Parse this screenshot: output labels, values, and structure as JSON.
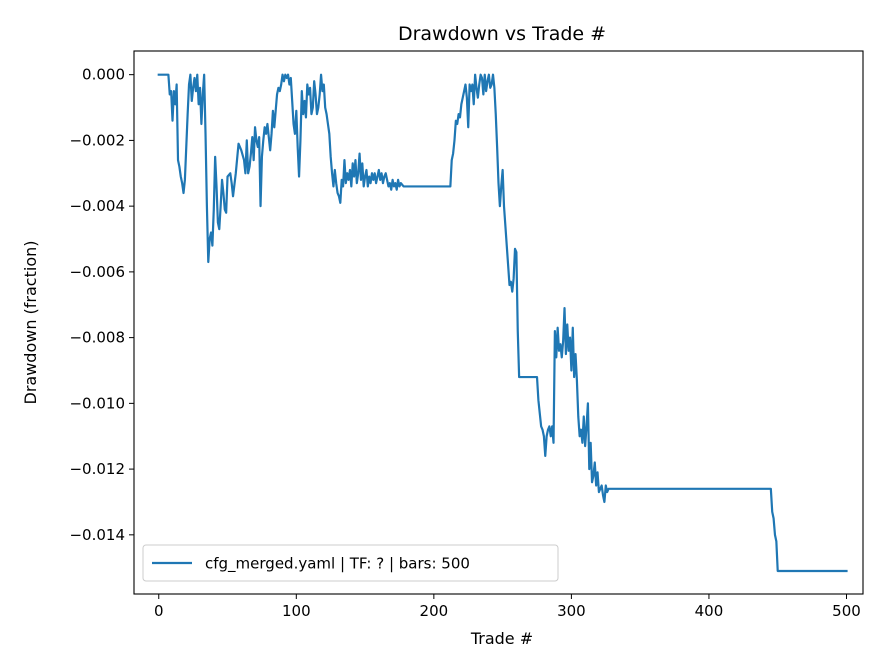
{
  "chart_data": {
    "type": "line",
    "title": "Drawdown vs Trade #",
    "xlabel": "Trade #",
    "ylabel": "Drawdown (fraction)",
    "xlim": [
      -18,
      512
    ],
    "ylim": [
      -0.0158,
      0.00072
    ],
    "x_ticks": [
      0,
      100,
      200,
      300,
      400,
      500
    ],
    "x_tick_labels": [
      "0",
      "100",
      "200",
      "300",
      "400",
      "500"
    ],
    "y_ticks": [
      0.0,
      -0.002,
      -0.004,
      -0.006,
      -0.008,
      -0.01,
      -0.012,
      -0.014
    ],
    "y_tick_labels": [
      "0.000",
      "−0.002",
      "−0.004",
      "−0.006",
      "−0.008",
      "−0.010",
      "−0.012",
      "−0.014"
    ],
    "grid": false,
    "legend_position": "lower-left",
    "line_color": "#1f77b4",
    "series": [
      {
        "name": "cfg_merged.yaml | TF: ? | bars: 500",
        "points": [
          [
            0,
            0.0
          ],
          [
            7,
            0.0
          ],
          [
            8,
            -0.0006
          ],
          [
            9,
            -0.0005
          ],
          [
            10,
            -0.0014
          ],
          [
            11,
            -0.0005
          ],
          [
            12,
            -0.0009
          ],
          [
            13,
            -0.0003
          ],
          [
            14,
            -0.0026
          ],
          [
            15,
            -0.0028
          ],
          [
            16,
            -0.0031
          ],
          [
            17,
            -0.0033
          ],
          [
            18,
            -0.0036
          ],
          [
            19,
            -0.0032
          ],
          [
            20,
            -0.0022
          ],
          [
            21,
            -0.0012
          ],
          [
            22,
            -0.0003
          ],
          [
            23,
            0.0
          ],
          [
            24,
            -0.0008
          ],
          [
            25,
            -0.0004
          ],
          [
            26,
            -0.0001
          ],
          [
            27,
            -0.0005
          ],
          [
            28,
            0.0
          ],
          [
            29,
            -0.0009
          ],
          [
            30,
            -0.0004
          ],
          [
            31,
            -0.0015
          ],
          [
            32,
            -0.0006
          ],
          [
            33,
            0.0
          ],
          [
            34,
            -0.0018
          ],
          [
            35,
            -0.004
          ],
          [
            36,
            -0.0057
          ],
          [
            37,
            -0.005
          ],
          [
            38,
            -0.0048
          ],
          [
            39,
            -0.0052
          ],
          [
            40,
            -0.0041
          ],
          [
            41,
            -0.0025
          ],
          [
            42,
            -0.0034
          ],
          [
            43,
            -0.0045
          ],
          [
            44,
            -0.0047
          ],
          [
            45,
            -0.004
          ],
          [
            46,
            -0.0032
          ],
          [
            47,
            -0.0036
          ],
          [
            48,
            -0.0041
          ],
          [
            49,
            -0.0042
          ],
          [
            50,
            -0.0031
          ],
          [
            52,
            -0.003
          ],
          [
            53,
            -0.0033
          ],
          [
            54,
            -0.0037
          ],
          [
            56,
            -0.003
          ],
          [
            58,
            -0.0021
          ],
          [
            60,
            -0.0023
          ],
          [
            62,
            -0.0026
          ],
          [
            63,
            -0.003
          ],
          [
            64,
            -0.002
          ],
          [
            65,
            -0.003
          ],
          [
            66,
            -0.0028
          ],
          [
            67,
            -0.0024
          ],
          [
            68,
            -0.0019
          ],
          [
            69,
            -0.0026
          ],
          [
            70,
            -0.0016
          ],
          [
            71,
            -0.002
          ],
          [
            72,
            -0.0022
          ],
          [
            73,
            -0.0019
          ],
          [
            74,
            -0.004
          ],
          [
            75,
            -0.0025
          ],
          [
            76,
            -0.002
          ],
          [
            77,
            -0.0016
          ],
          [
            78,
            -0.0018
          ],
          [
            79,
            -0.0015
          ],
          [
            80,
            -0.0019
          ],
          [
            81,
            -0.0023
          ],
          [
            82,
            -0.0018
          ],
          [
            83,
            -0.0011
          ],
          [
            84,
            -0.0016
          ],
          [
            85,
            -0.0011
          ],
          [
            86,
            -0.0006
          ],
          [
            87,
            -0.0004
          ],
          [
            88,
            -0.0005
          ],
          [
            89,
            -0.0003
          ],
          [
            90,
            0.0
          ],
          [
            91,
            -0.0002
          ],
          [
            92,
            0.0
          ],
          [
            93,
            -0.0001
          ],
          [
            94,
            0.0
          ],
          [
            95,
            -0.0003
          ],
          [
            96,
            -0.0001
          ],
          [
            97,
            -0.0008
          ],
          [
            98,
            -0.0015
          ],
          [
            99,
            -0.0018
          ],
          [
            100,
            -0.0011
          ],
          [
            101,
            -0.0022
          ],
          [
            102,
            -0.0031
          ],
          [
            103,
            -0.002
          ],
          [
            104,
            -0.0005
          ],
          [
            105,
            -0.0012
          ],
          [
            106,
            -0.0008
          ],
          [
            107,
            -0.0013
          ],
          [
            108,
            -0.0003
          ],
          [
            109,
            -0.0006
          ],
          [
            110,
            -0.0004
          ],
          [
            111,
            -0.0012
          ],
          [
            112,
            -0.001
          ],
          [
            113,
            -0.0002
          ],
          [
            114,
            -0.0006
          ],
          [
            115,
            -0.0012
          ],
          [
            116,
            -0.001
          ],
          [
            117,
            -0.0006
          ],
          [
            118,
            0.0
          ],
          [
            119,
            -0.0005
          ],
          [
            120,
            -0.0003
          ],
          [
            121,
            -0.001
          ],
          [
            122,
            -0.0012
          ],
          [
            123,
            -0.0015
          ],
          [
            124,
            -0.0018
          ],
          [
            125,
            -0.0025
          ],
          [
            126,
            -0.003
          ],
          [
            127,
            -0.0034
          ],
          [
            128,
            -0.0029
          ],
          [
            129,
            -0.0033
          ],
          [
            130,
            -0.0036
          ],
          [
            131,
            -0.0037
          ],
          [
            132,
            -0.0039
          ],
          [
            133,
            -0.0032
          ],
          [
            134,
            -0.0034
          ],
          [
            135,
            -0.0026
          ],
          [
            136,
            -0.0033
          ],
          [
            137,
            -0.003
          ],
          [
            138,
            -0.0032
          ],
          [
            139,
            -0.0029
          ],
          [
            140,
            -0.0034
          ],
          [
            141,
            -0.0027
          ],
          [
            142,
            -0.0031
          ],
          [
            143,
            -0.0026
          ],
          [
            144,
            -0.0033
          ],
          [
            145,
            -0.003
          ],
          [
            146,
            -0.0024
          ],
          [
            147,
            -0.0032
          ],
          [
            148,
            -0.0027
          ],
          [
            149,
            -0.0034
          ],
          [
            150,
            -0.0031
          ],
          [
            151,
            -0.0029
          ],
          [
            152,
            -0.0034
          ],
          [
            153,
            -0.0031
          ],
          [
            154,
            -0.0033
          ],
          [
            155,
            -0.003
          ],
          [
            156,
            -0.0032
          ],
          [
            157,
            -0.003
          ],
          [
            158,
            -0.0033
          ],
          [
            159,
            -0.0031
          ],
          [
            160,
            -0.0029
          ],
          [
            161,
            -0.0032
          ],
          [
            162,
            -0.003
          ],
          [
            163,
            -0.0033
          ],
          [
            164,
            -0.0031
          ],
          [
            165,
            -0.003
          ],
          [
            166,
            -0.0032
          ],
          [
            167,
            -0.0034
          ],
          [
            168,
            -0.0033
          ],
          [
            169,
            -0.0035
          ],
          [
            170,
            -0.0032
          ],
          [
            171,
            -0.0034
          ],
          [
            172,
            -0.0033
          ],
          [
            173,
            -0.0035
          ],
          [
            174,
            -0.0032
          ],
          [
            175,
            -0.0034
          ],
          [
            176,
            -0.0033
          ],
          [
            178,
            -0.0034
          ],
          [
            180,
            -0.0034
          ],
          [
            212,
            -0.0034
          ],
          [
            213,
            -0.0026
          ],
          [
            214,
            -0.0024
          ],
          [
            215,
            -0.002
          ],
          [
            216,
            -0.0014
          ],
          [
            217,
            -0.0015
          ],
          [
            218,
            -0.0012
          ],
          [
            219,
            -0.0013
          ],
          [
            220,
            -0.0009
          ],
          [
            221,
            -0.0007
          ],
          [
            222,
            -0.0005
          ],
          [
            223,
            -0.0003
          ],
          [
            224,
            -0.0007
          ],
          [
            225,
            -0.0016
          ],
          [
            226,
            -0.0003
          ],
          [
            227,
            -0.0005
          ],
          [
            228,
            -0.0003
          ],
          [
            229,
            -0.0009
          ],
          [
            230,
            0.0
          ],
          [
            231,
            -0.0004
          ],
          [
            232,
            -0.0007
          ],
          [
            233,
            -0.0003
          ],
          [
            234,
            0.0
          ],
          [
            235,
            -0.0001
          ],
          [
            236,
            -0.0006
          ],
          [
            237,
            0.0
          ],
          [
            238,
            -0.0005
          ],
          [
            239,
            -0.0002
          ],
          [
            240,
            0.0
          ],
          [
            241,
            -0.0004
          ],
          [
            242,
            -0.0003
          ],
          [
            243,
            0.0
          ],
          [
            244,
            -0.0004
          ],
          [
            245,
            -0.0012
          ],
          [
            246,
            -0.0022
          ],
          [
            247,
            -0.0033
          ],
          [
            248,
            -0.004
          ],
          [
            249,
            -0.0034
          ],
          [
            250,
            -0.0029
          ],
          [
            251,
            -0.004
          ],
          [
            252,
            -0.0046
          ],
          [
            253,
            -0.0052
          ],
          [
            254,
            -0.0058
          ],
          [
            255,
            -0.0064
          ],
          [
            256,
            -0.0063
          ],
          [
            257,
            -0.0066
          ],
          [
            258,
            -0.0062
          ],
          [
            259,
            -0.0053
          ],
          [
            260,
            -0.0054
          ],
          [
            261,
            -0.0078
          ],
          [
            262,
            -0.0092
          ],
          [
            275,
            -0.0092
          ],
          [
            276,
            -0.0099
          ],
          [
            277,
            -0.0103
          ],
          [
            278,
            -0.0107
          ],
          [
            279,
            -0.0108
          ],
          [
            280,
            -0.011
          ],
          [
            281,
            -0.0116
          ],
          [
            282,
            -0.011
          ],
          [
            283,
            -0.0108
          ],
          [
            284,
            -0.0107
          ],
          [
            285,
            -0.011
          ],
          [
            286,
            -0.0107
          ],
          [
            287,
            -0.0112
          ],
          [
            288,
            -0.0078
          ],
          [
            289,
            -0.0086
          ],
          [
            290,
            -0.0077
          ],
          [
            291,
            -0.0084
          ],
          [
            292,
            -0.0082
          ],
          [
            293,
            -0.0086
          ],
          [
            294,
            -0.0081
          ],
          [
            295,
            -0.0071
          ],
          [
            296,
            -0.0085
          ],
          [
            297,
            -0.0076
          ],
          [
            298,
            -0.0084
          ],
          [
            299,
            -0.008
          ],
          [
            300,
            -0.009
          ],
          [
            301,
            -0.0077
          ],
          [
            302,
            -0.0092
          ],
          [
            303,
            -0.0085
          ],
          [
            304,
            -0.0093
          ],
          [
            305,
            -0.0104
          ],
          [
            306,
            -0.011
          ],
          [
            307,
            -0.0108
          ],
          [
            308,
            -0.0112
          ],
          [
            309,
            -0.0104
          ],
          [
            310,
            -0.0113
          ],
          [
            311,
            -0.0107
          ],
          [
            312,
            -0.01
          ],
          [
            313,
            -0.012
          ],
          [
            314,
            -0.0112
          ],
          [
            315,
            -0.0124
          ],
          [
            316,
            -0.0122
          ],
          [
            317,
            -0.0118
          ],
          [
            318,
            -0.0125
          ],
          [
            319,
            -0.0121
          ],
          [
            320,
            -0.0127
          ],
          [
            321,
            -0.0126
          ],
          [
            322,
            -0.0125
          ],
          [
            323,
            -0.0128
          ],
          [
            324,
            -0.013
          ],
          [
            325,
            -0.0125
          ],
          [
            326,
            -0.0127
          ],
          [
            327,
            -0.0126
          ],
          [
            445,
            -0.0126
          ],
          [
            446,
            -0.0133
          ],
          [
            447,
            -0.0135
          ],
          [
            448,
            -0.014
          ],
          [
            449,
            -0.0142
          ],
          [
            450,
            -0.0151
          ],
          [
            500,
            -0.0151
          ]
        ]
      }
    ]
  }
}
